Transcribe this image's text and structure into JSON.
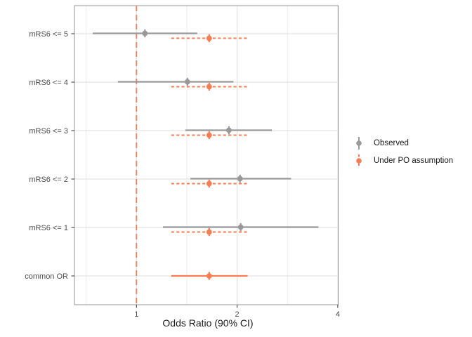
{
  "chart_data": {
    "type": "forest",
    "title": "",
    "xlabel": "Odds Ratio (90% CI)",
    "x_scale": "log2",
    "x_ticks": {
      "values": [
        1,
        2,
        4
      ],
      "labels": [
        "1",
        "2",
        "4"
      ]
    },
    "x_minor_gridlines": [
      0.7071,
      1.4142,
      2.8284
    ],
    "xlim": [
      0.653,
      4.03
    ],
    "categories": [
      "mRS6 <= 5",
      "mRS6 <= 4",
      "mRS6 <= 3",
      "mRS6 <= 2",
      "mRS6 <= 1",
      "common OR"
    ],
    "reference_line": {
      "x": 1,
      "style": "dashed",
      "color": "#F97D53"
    },
    "legend_position": "right",
    "series": [
      {
        "name": "Observed",
        "color": "#999999",
        "style": "solid",
        "points": [
          {
            "category": "mRS6 <= 5",
            "or": 1.06,
            "low": 0.74,
            "high": 1.52
          },
          {
            "category": "mRS6 <= 4",
            "or": 1.42,
            "low": 0.88,
            "high": 1.95
          },
          {
            "category": "mRS6 <= 3",
            "or": 1.89,
            "low": 1.4,
            "high": 2.54
          },
          {
            "category": "mRS6 <= 2",
            "or": 2.04,
            "low": 1.45,
            "high": 2.9
          },
          {
            "category": "mRS6 <= 1",
            "or": 2.05,
            "low": 1.2,
            "high": 3.5
          }
        ]
      },
      {
        "name": "Under PO assumption",
        "color": "#F97D53",
        "style": "dashed",
        "points": [
          {
            "category": "mRS6 <= 5",
            "or": 1.65,
            "low": 1.27,
            "high": 2.15,
            "line": "dashed"
          },
          {
            "category": "mRS6 <= 4",
            "or": 1.65,
            "low": 1.27,
            "high": 2.15,
            "line": "dashed"
          },
          {
            "category": "mRS6 <= 3",
            "or": 1.65,
            "low": 1.27,
            "high": 2.15,
            "line": "dashed"
          },
          {
            "category": "mRS6 <= 2",
            "or": 1.65,
            "low": 1.27,
            "high": 2.15,
            "line": "dashed"
          },
          {
            "category": "mRS6 <= 1",
            "or": 1.65,
            "low": 1.27,
            "high": 2.15,
            "line": "dashed"
          },
          {
            "category": "common OR",
            "or": 1.65,
            "low": 1.27,
            "high": 2.15,
            "line": "solid"
          }
        ]
      }
    ]
  }
}
